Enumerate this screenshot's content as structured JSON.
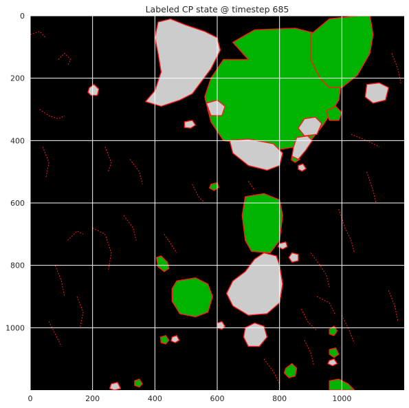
{
  "chart_data": {
    "type": "heatmap",
    "title": "Labeled CP state @ timestep 685",
    "xlabel": "",
    "ylabel": "",
    "xlim": [
      0,
      1200
    ],
    "ylim": [
      1200,
      0
    ],
    "x_ticks": [
      0,
      200,
      400,
      600,
      800,
      1000
    ],
    "y_ticks": [
      0,
      200,
      400,
      600,
      800,
      1000
    ],
    "grid": true,
    "background_label": {
      "color": "#000000"
    },
    "categories": [
      {
        "color": "#00b300"
      },
      {
        "color": "#cccccc"
      },
      {
        "color": "#ff1a1a"
      }
    ],
    "regions": [
      {
        "category": 0,
        "points": [
          [
            700,
            140
          ],
          [
            650,
            85
          ],
          [
            720,
            45
          ],
          [
            850,
            40
          ],
          [
            930,
            60
          ],
          [
            970,
            80
          ],
          [
            1000,
            90
          ],
          [
            1010,
            140
          ],
          [
            1000,
            200
          ],
          [
            990,
            270
          ],
          [
            940,
            350
          ],
          [
            900,
            400
          ],
          [
            850,
            420
          ],
          [
            790,
            430
          ],
          [
            700,
            410
          ],
          [
            620,
            400
          ],
          [
            580,
            340
          ],
          [
            560,
            260
          ],
          [
            580,
            200
          ],
          [
            620,
            140
          ]
        ]
      },
      {
        "category": 0,
        "points": [
          [
            900,
            60
          ],
          [
            960,
            10
          ],
          [
            1050,
            0
          ],
          [
            1090,
            0
          ],
          [
            1100,
            60
          ],
          [
            1090,
            120
          ],
          [
            1050,
            190
          ],
          [
            1000,
            230
          ],
          [
            960,
            230
          ],
          [
            930,
            200
          ],
          [
            900,
            140
          ]
        ]
      },
      {
        "category": 0,
        "points": [
          [
            690,
            580
          ],
          [
            750,
            570
          ],
          [
            800,
            590
          ],
          [
            810,
            640
          ],
          [
            800,
            720
          ],
          [
            770,
            760
          ],
          [
            710,
            755
          ],
          [
            690,
            720
          ],
          [
            680,
            640
          ]
        ]
      },
      {
        "category": 0,
        "points": [
          [
            470,
            850
          ],
          [
            530,
            840
          ],
          [
            570,
            860
          ],
          [
            585,
            900
          ],
          [
            570,
            950
          ],
          [
            530,
            965
          ],
          [
            480,
            955
          ],
          [
            455,
            915
          ],
          [
            455,
            875
          ]
        ]
      },
      {
        "category": 0,
        "points": [
          [
            950,
            305
          ],
          [
            980,
            290
          ],
          [
            1000,
            310
          ],
          [
            990,
            335
          ],
          [
            960,
            335
          ]
        ]
      },
      {
        "category": 0,
        "points": [
          [
            405,
            775
          ],
          [
            420,
            770
          ],
          [
            440,
            790
          ],
          [
            445,
            810
          ],
          [
            430,
            820
          ],
          [
            410,
            805
          ]
        ]
      },
      {
        "category": 0,
        "points": [
          [
            820,
            1130
          ],
          [
            840,
            1115
          ],
          [
            855,
            1130
          ],
          [
            850,
            1155
          ],
          [
            830,
            1160
          ],
          [
            815,
            1145
          ]
        ]
      },
      {
        "category": 0,
        "points": [
          [
            580,
            540
          ],
          [
            600,
            535
          ],
          [
            605,
            550
          ],
          [
            590,
            560
          ],
          [
            575,
            552
          ]
        ]
      },
      {
        "category": 0,
        "points": [
          [
            840,
            450
          ],
          [
            855,
            445
          ],
          [
            865,
            460
          ],
          [
            850,
            470
          ],
          [
            838,
            462
          ]
        ]
      },
      {
        "category": 0,
        "points": [
          [
            418,
            1030
          ],
          [
            435,
            1025
          ],
          [
            445,
            1040
          ],
          [
            435,
            1052
          ],
          [
            420,
            1048
          ]
        ]
      },
      {
        "category": 0,
        "points": [
          [
            960,
            1005
          ],
          [
            975,
            995
          ],
          [
            985,
            1010
          ],
          [
            975,
            1025
          ],
          [
            960,
            1020
          ]
        ]
      },
      {
        "category": 0,
        "points": [
          [
            960,
            1070
          ],
          [
            980,
            1065
          ],
          [
            990,
            1085
          ],
          [
            975,
            1095
          ],
          [
            960,
            1085
          ]
        ]
      },
      {
        "category": 0,
        "points": [
          [
            960,
            1170
          ],
          [
            990,
            1165
          ],
          [
            1020,
            1180
          ],
          [
            1040,
            1200
          ],
          [
            960,
            1200
          ]
        ]
      },
      {
        "category": 0,
        "points": [
          [
            335,
            1170
          ],
          [
            350,
            1165
          ],
          [
            360,
            1180
          ],
          [
            350,
            1190
          ],
          [
            335,
            1185
          ]
        ]
      },
      {
        "category": 1,
        "points": [
          [
            410,
            20
          ],
          [
            450,
            10
          ],
          [
            500,
            30
          ],
          [
            560,
            50
          ],
          [
            600,
            70
          ],
          [
            610,
            110
          ],
          [
            580,
            170
          ],
          [
            550,
            210
          ],
          [
            520,
            250
          ],
          [
            480,
            270
          ],
          [
            420,
            290
          ],
          [
            370,
            275
          ],
          [
            400,
            240
          ],
          [
            420,
            180
          ],
          [
            410,
            120
          ],
          [
            400,
            70
          ]
        ]
      },
      {
        "category": 1,
        "points": [
          [
            640,
            400
          ],
          [
            700,
            395
          ],
          [
            780,
            410
          ],
          [
            810,
            440
          ],
          [
            800,
            480
          ],
          [
            760,
            495
          ],
          [
            700,
            480
          ],
          [
            650,
            440
          ]
        ]
      },
      {
        "category": 1,
        "points": [
          [
            800,
            800
          ],
          [
            790,
            770
          ],
          [
            750,
            760
          ],
          [
            720,
            780
          ],
          [
            690,
            820
          ],
          [
            650,
            850
          ],
          [
            630,
            890
          ],
          [
            650,
            930
          ],
          [
            700,
            960
          ],
          [
            760,
            955
          ],
          [
            800,
            920
          ],
          [
            810,
            860
          ]
        ]
      },
      {
        "category": 1,
        "points": [
          [
            565,
            280
          ],
          [
            600,
            270
          ],
          [
            625,
            290
          ],
          [
            615,
            320
          ],
          [
            580,
            320
          ]
        ]
      },
      {
        "category": 1,
        "points": [
          [
            880,
            330
          ],
          [
            915,
            325
          ],
          [
            935,
            345
          ],
          [
            920,
            380
          ],
          [
            880,
            385
          ],
          [
            860,
            360
          ]
        ]
      },
      {
        "category": 1,
        "points": [
          [
            1080,
            220
          ],
          [
            1120,
            215
          ],
          [
            1150,
            230
          ],
          [
            1140,
            270
          ],
          [
            1100,
            280
          ],
          [
            1075,
            260
          ]
        ]
      },
      {
        "category": 1,
        "points": [
          [
            855,
            390
          ],
          [
            890,
            385
          ],
          [
            905,
            400
          ],
          [
            885,
            430
          ],
          [
            860,
            460
          ],
          [
            840,
            450
          ],
          [
            845,
            420
          ]
        ]
      },
      {
        "category": 1,
        "points": [
          [
            690,
            1000
          ],
          [
            720,
            985
          ],
          [
            750,
            995
          ],
          [
            760,
            1030
          ],
          [
            735,
            1060
          ],
          [
            700,
            1060
          ],
          [
            685,
            1030
          ]
        ]
      },
      {
        "category": 1,
        "points": [
          [
            840,
            760
          ],
          [
            860,
            765
          ],
          [
            860,
            785
          ],
          [
            840,
            790
          ],
          [
            830,
            775
          ]
        ]
      },
      {
        "category": 1,
        "points": [
          [
            800,
            730
          ],
          [
            820,
            725
          ],
          [
            825,
            740
          ],
          [
            810,
            748
          ],
          [
            795,
            740
          ]
        ]
      },
      {
        "category": 1,
        "points": [
          [
            190,
            230
          ],
          [
            205,
            220
          ],
          [
            220,
            235
          ],
          [
            215,
            255
          ],
          [
            195,
            255
          ],
          [
            185,
            245
          ]
        ]
      },
      {
        "category": 1,
        "points": [
          [
            495,
            340
          ],
          [
            520,
            335
          ],
          [
            530,
            350
          ],
          [
            515,
            360
          ],
          [
            495,
            358
          ]
        ]
      },
      {
        "category": 1,
        "points": [
          [
            600,
            985
          ],
          [
            615,
            980
          ],
          [
            625,
            995
          ],
          [
            615,
            1005
          ],
          [
            600,
            1000
          ]
        ]
      },
      {
        "category": 1,
        "points": [
          [
            455,
            1030
          ],
          [
            470,
            1025
          ],
          [
            478,
            1040
          ],
          [
            465,
            1048
          ],
          [
            452,
            1042
          ]
        ]
      },
      {
        "category": 1,
        "points": [
          [
            260,
            1180
          ],
          [
            280,
            1175
          ],
          [
            290,
            1195
          ],
          [
            270,
            1200
          ],
          [
            255,
            1195
          ]
        ]
      },
      {
        "category": 1,
        "points": [
          [
            960,
            1105
          ],
          [
            975,
            1100
          ],
          [
            985,
            1115
          ],
          [
            970,
            1122
          ],
          [
            955,
            1115
          ]
        ]
      },
      {
        "category": 1,
        "points": [
          [
            860,
            480
          ],
          [
            875,
            475
          ],
          [
            885,
            490
          ],
          [
            872,
            498
          ],
          [
            860,
            492
          ]
        ]
      }
    ],
    "boundary_paths": [
      [
        [
          90,
          140
        ],
        [
          110,
          120
        ],
        [
          130,
          140
        ],
        [
          120,
          160
        ]
      ],
      [
        [
          30,
          300
        ],
        [
          60,
          320
        ],
        [
          90,
          330
        ],
        [
          110,
          320
        ]
      ],
      [
        [
          200,
          680
        ],
        [
          240,
          700
        ],
        [
          260,
          760
        ],
        [
          250,
          820
        ]
      ],
      [
        [
          120,
          720
        ],
        [
          150,
          690
        ],
        [
          170,
          700
        ]
      ],
      [
        [
          900,
          760
        ],
        [
          930,
          800
        ],
        [
          950,
          830
        ],
        [
          960,
          870
        ]
      ],
      [
        [
          870,
          940
        ],
        [
          890,
          980
        ],
        [
          920,
          1010
        ]
      ],
      [
        [
          40,
          420
        ],
        [
          60,
          470
        ],
        [
          50,
          520
        ]
      ],
      [
        [
          150,
          900
        ],
        [
          170,
          950
        ],
        [
          160,
          1000
        ]
      ],
      [
        [
          320,
          460
        ],
        [
          350,
          500
        ],
        [
          360,
          540
        ]
      ],
      [
        [
          990,
          620
        ],
        [
          1010,
          680
        ],
        [
          1030,
          720
        ],
        [
          1040,
          760
        ]
      ],
      [
        [
          920,
          900
        ],
        [
          960,
          920
        ],
        [
          980,
          960
        ]
      ],
      [
        [
          1000,
          960
        ],
        [
          1020,
          1000
        ],
        [
          1040,
          1050
        ]
      ],
      [
        [
          1030,
          380
        ],
        [
          1080,
          400
        ],
        [
          1120,
          420
        ]
      ],
      [
        [
          1080,
          500
        ],
        [
          1100,
          560
        ],
        [
          1110,
          600
        ]
      ],
      [
        [
          300,
          640
        ],
        [
          330,
          680
        ],
        [
          340,
          720
        ]
      ],
      [
        [
          80,
          800
        ],
        [
          100,
          850
        ],
        [
          110,
          900
        ]
      ],
      [
        [
          240,
          420
        ],
        [
          260,
          470
        ],
        [
          250,
          500
        ]
      ],
      [
        [
          1160,
          120
        ],
        [
          1180,
          170
        ],
        [
          1190,
          220
        ]
      ],
      [
        [
          700,
          530
        ],
        [
          720,
          560
        ]
      ],
      [
        [
          520,
          540
        ],
        [
          540,
          580
        ],
        [
          560,
          600
        ]
      ],
      [
        [
          750,
          1100
        ],
        [
          780,
          1140
        ],
        [
          800,
          1180
        ]
      ],
      [
        [
          880,
          1040
        ],
        [
          900,
          1080
        ],
        [
          910,
          1120
        ]
      ],
      [
        [
          0,
          60
        ],
        [
          30,
          50
        ],
        [
          50,
          70
        ]
      ],
      [
        [
          60,
          980
        ],
        [
          80,
          1020
        ],
        [
          100,
          1060
        ]
      ],
      [
        [
          1150,
          880
        ],
        [
          1170,
          930
        ],
        [
          1180,
          980
        ]
      ],
      [
        [
          430,
          700
        ],
        [
          450,
          730
        ],
        [
          470,
          760
        ]
      ]
    ]
  }
}
